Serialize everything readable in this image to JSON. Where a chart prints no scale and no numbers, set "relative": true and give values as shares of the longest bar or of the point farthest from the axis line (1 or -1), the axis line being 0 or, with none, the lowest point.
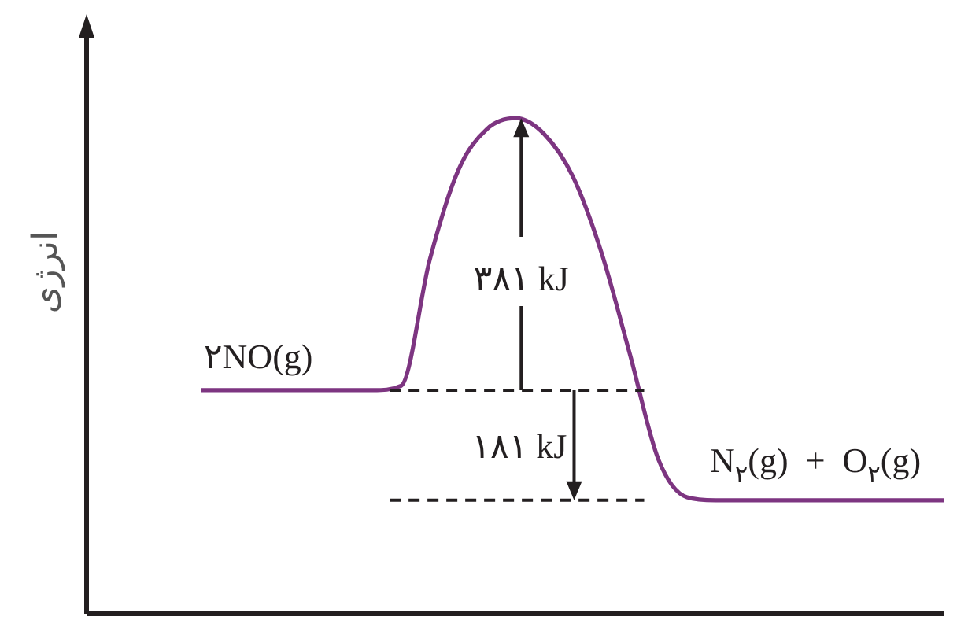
{
  "chart_data": {
    "type": "line",
    "relative": true,
    "ylabel": "انرژی",
    "categories": [
      null,
      null,
      null,
      null,
      null,
      null,
      null,
      null,
      null,
      null,
      null,
      null,
      null,
      null,
      null,
      null,
      null,
      null,
      null,
      null,
      null,
      null,
      null,
      null,
      null,
      null,
      null,
      null,
      null,
      null,
      null
    ],
    "series": [
      {
        "color": "#7d3581",
        "values": [
          null,
          null,
          null,
          null,
          0.451,
          0.451,
          0.451,
          0.451,
          0.451,
          0.451,
          0.451,
          0.46,
          0.714,
          0.895,
          0.978,
          1,
          0.968,
          0.883,
          0.73,
          0.524,
          0.311,
          0.235,
          0.229,
          0.229,
          0.229,
          0.229,
          0.229,
          0.229,
          0.229,
          0.229,
          0.229
        ]
      }
    ],
    "ref_lines": [
      {
        "axis": "y",
        "value": 0.451,
        "line_style": "dashed",
        "color": "#231f20"
      },
      {
        "axis": "y",
        "value": 0.229,
        "line_style": "dashed",
        "color": "#231f20"
      }
    ],
    "annotations": [
      "۲NO(g)",
      "N$_{۲}$(g)  +  O$_{۲}$(g)",
      "۳۸۱ kJ",
      "۱۸۱ kJ"
    ],
    "legend": false,
    "marker": "none",
    "line_style": "solid",
    "tick_labels": false
  }
}
